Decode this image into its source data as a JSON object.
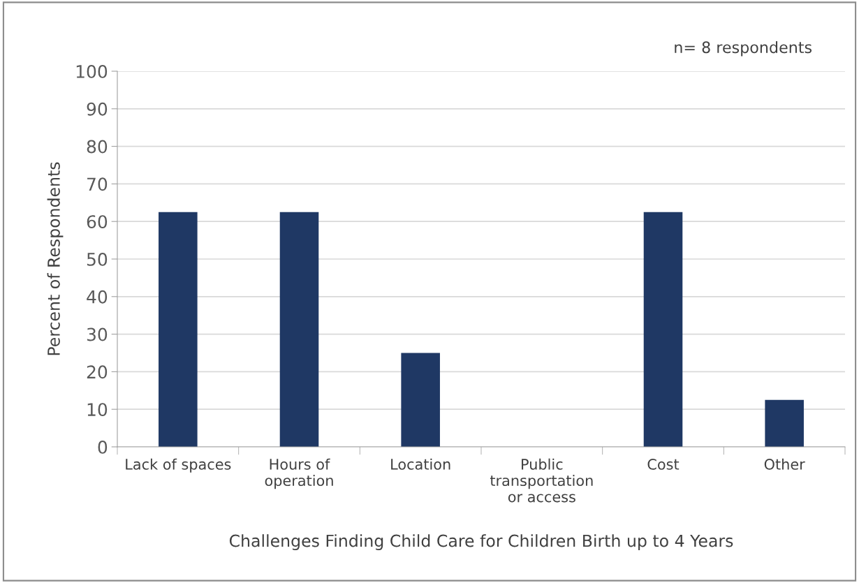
{
  "chart_data": {
    "type": "bar",
    "xlabel": "Challenges Finding Child Care for Children Birth up to 4 Years",
    "ylabel": "Percent of Respondents",
    "categories": [
      "Lack of spaces",
      "Hours of\noperation",
      "Location",
      "Public\ntransportation\nor access",
      "Cost",
      "Other"
    ],
    "values": [
      62.5,
      62.5,
      25,
      0,
      62.5,
      12.5
    ],
    "color": "#1f3864",
    "ylim": [
      0,
      100
    ],
    "yticks": [
      0,
      10,
      20,
      30,
      40,
      50,
      60,
      70,
      80,
      90,
      100
    ],
    "grid": "y",
    "annotations": [
      "n= 8 respondents"
    ]
  }
}
